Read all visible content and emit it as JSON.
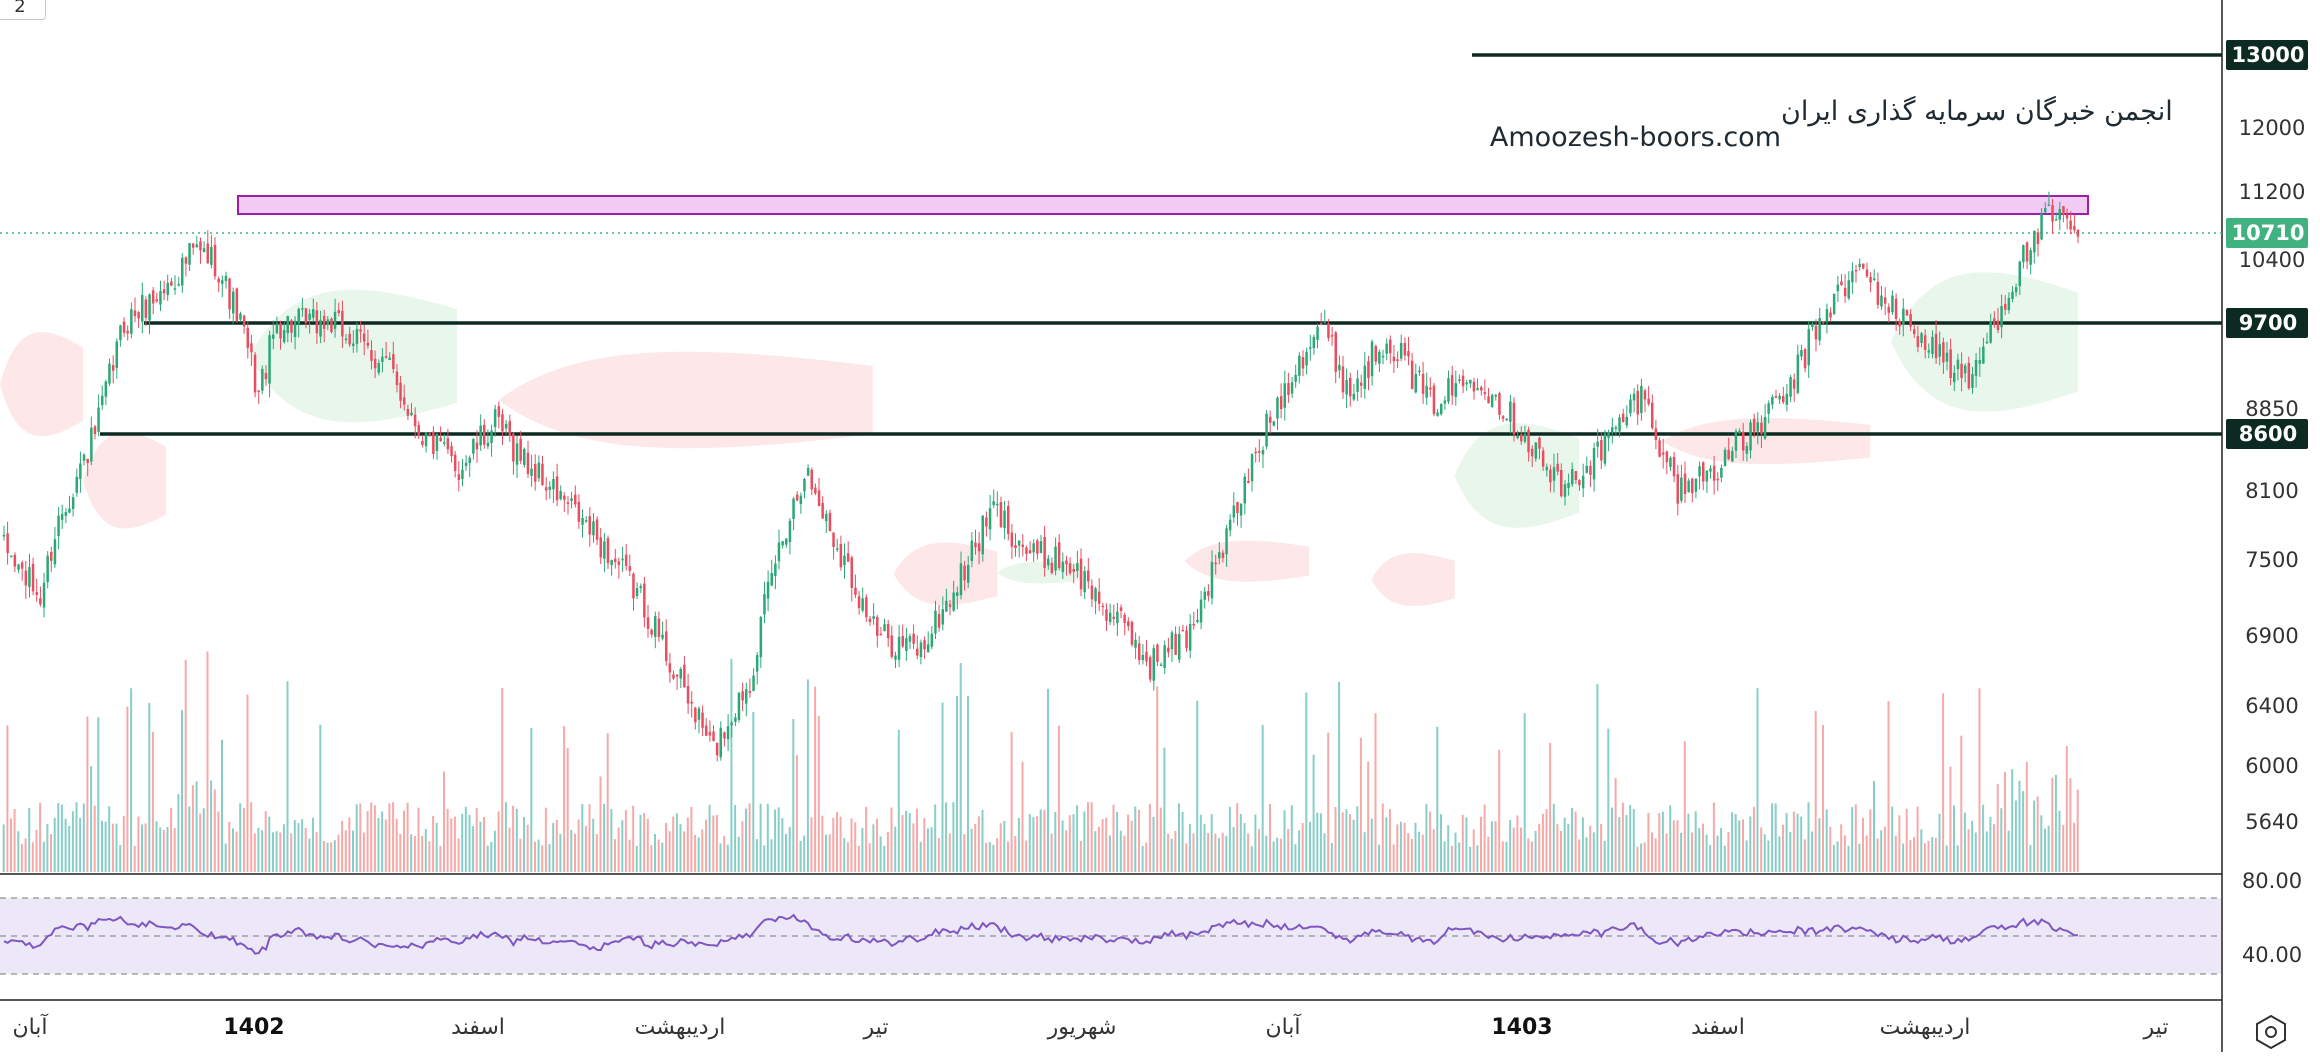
{
  "chart_data": {
    "type": "candlestick",
    "watermark": {
      "line1": "انجمن خبرگان سرمایه گذاری ایران",
      "line2": "Amoozesh-boors.com"
    },
    "top_left_label": "2",
    "price_axis_ticks": [
      "13000",
      "12000",
      "11200",
      "10400",
      "8850",
      "8100",
      "7500",
      "6900",
      "6400",
      "6000",
      "5640"
    ],
    "price_badges": [
      {
        "label": "13000",
        "value": 13000,
        "color": "#0d2a22"
      },
      {
        "label": "10710",
        "value": 10710,
        "color": "#3fb27f"
      },
      {
        "label": "9700",
        "value": 9700,
        "color": "#0d2a22"
      },
      {
        "label": "8600",
        "value": 8600,
        "color": "#0d2a22"
      }
    ],
    "horizontal_levels": [
      13000,
      9700,
      8600
    ],
    "last_price": 10710,
    "resistance_zone": [
      10880,
      11050
    ],
    "rsi_axis_ticks": [
      "80.00",
      "40.00"
    ],
    "rsi_levels": [
      70,
      50,
      30
    ],
    "time_axis_labels": [
      {
        "label": "آبان",
        "bold": false
      },
      {
        "label": "1402",
        "bold": true
      },
      {
        "label": "اسفند",
        "bold": false
      },
      {
        "label": "اردیبهشت",
        "bold": false
      },
      {
        "label": "تیر",
        "bold": false
      },
      {
        "label": "شهریور",
        "bold": false
      },
      {
        "label": "آبان",
        "bold": false
      },
      {
        "label": "1403",
        "bold": true
      },
      {
        "label": "اسفند",
        "bold": false
      },
      {
        "label": "اردیبهشت",
        "bold": false
      },
      {
        "label": "تیر",
        "bold": false
      }
    ],
    "price_path_keypoints": [
      [
        0,
        7600
      ],
      [
        10,
        7200
      ],
      [
        15,
        7850
      ],
      [
        25,
        8600
      ],
      [
        33,
        9700
      ],
      [
        45,
        10100
      ],
      [
        52,
        10500
      ],
      [
        58,
        10400
      ],
      [
        65,
        9700
      ],
      [
        70,
        9000
      ],
      [
        75,
        9700
      ],
      [
        90,
        9700
      ],
      [
        105,
        9300
      ],
      [
        115,
        8600
      ],
      [
        125,
        8300
      ],
      [
        135,
        8700
      ],
      [
        145,
        8300
      ],
      [
        160,
        7800
      ],
      [
        175,
        7200
      ],
      [
        185,
        6600
      ],
      [
        195,
        6100
      ],
      [
        205,
        6600
      ],
      [
        212,
        7500
      ],
      [
        220,
        8300
      ],
      [
        228,
        7700
      ],
      [
        240,
        6900
      ],
      [
        252,
        6800
      ],
      [
        262,
        7300
      ],
      [
        272,
        7950
      ],
      [
        282,
        7550
      ],
      [
        292,
        7500
      ],
      [
        305,
        7050
      ],
      [
        315,
        6700
      ],
      [
        325,
        6900
      ],
      [
        335,
        7600
      ],
      [
        345,
        8500
      ],
      [
        355,
        9300
      ],
      [
        362,
        9700
      ],
      [
        370,
        9000
      ],
      [
        380,
        9600
      ],
      [
        392,
        8900
      ],
      [
        405,
        9200
      ],
      [
        418,
        8600
      ],
      [
        428,
        8100
      ],
      [
        440,
        8500
      ],
      [
        450,
        9000
      ],
      [
        460,
        8100
      ],
      [
        470,
        8300
      ],
      [
        480,
        8600
      ],
      [
        490,
        9000
      ],
      [
        500,
        9800
      ],
      [
        510,
        10300
      ],
      [
        520,
        9800
      ],
      [
        532,
        9400
      ],
      [
        540,
        9100
      ],
      [
        548,
        9800
      ],
      [
        556,
        10500
      ],
      [
        562,
        10900
      ],
      [
        570,
        10710
      ]
    ],
    "ichimoku_cloud": [
      {
        "start": 0,
        "end": 0.04,
        "top": 9700,
        "bottom": 8500,
        "color": "red"
      },
      {
        "start": 0.04,
        "end": 0.08,
        "top": 8700,
        "bottom": 7700,
        "color": "red"
      },
      {
        "start": 0.12,
        "end": 0.22,
        "top": 10200,
        "bottom": 8600,
        "color": "green"
      },
      {
        "start": 0.24,
        "end": 0.42,
        "top": 9500,
        "bottom": 8400,
        "color": "red"
      },
      {
        "start": 0.43,
        "end": 0.48,
        "top": 7700,
        "bottom": 7100,
        "color": "red"
      },
      {
        "start": 0.48,
        "end": 0.52,
        "top": 7500,
        "bottom": 7300,
        "color": "green"
      },
      {
        "start": 0.57,
        "end": 0.63,
        "top": 7700,
        "bottom": 7300,
        "color": "red"
      },
      {
        "start": 0.66,
        "end": 0.7,
        "top": 7600,
        "bottom": 7100,
        "color": "red"
      },
      {
        "start": 0.7,
        "end": 0.76,
        "top": 8800,
        "bottom": 7700,
        "color": "green"
      },
      {
        "start": 0.8,
        "end": 0.9,
        "top": 8800,
        "bottom": 8300,
        "color": "red"
      },
      {
        "start": 0.91,
        "end": 1.0,
        "top": 10400,
        "bottom": 8700,
        "color": "green"
      }
    ]
  }
}
